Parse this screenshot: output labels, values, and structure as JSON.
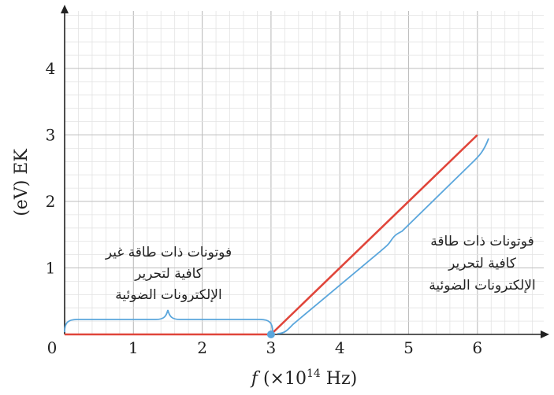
{
  "chart_data": {
    "type": "line",
    "xlabel_prefix": "f",
    "xlabel": "(×10",
    "xlabel_exp": "14",
    "xlabel_suffix": " Hz)",
    "ylabel": "(eV) EK",
    "xlim": [
      0,
      7.0
    ],
    "ylim": [
      0,
      5
    ],
    "x_ticks": [
      0,
      1,
      2,
      3,
      4,
      5,
      6
    ],
    "y_ticks": [
      1,
      2,
      3,
      4
    ],
    "grid": true,
    "series": [
      {
        "x": [
          0,
          3,
          6
        ],
        "y": [
          0,
          0,
          3
        ],
        "color": "#e0453a"
      }
    ],
    "threshold_point": {
      "x": 3,
      "y": 0,
      "color": "#5aa6dc"
    },
    "brace_color": "#5aa6dc",
    "annotations": {
      "left": [
        "فوتونات ذات طاقة غير",
        "كافية لتحرير",
        "الإلكترونات الضوئية"
      ],
      "right": [
        "فوتونات ذات طاقة",
        "كافية لتحرير",
        "الإلكترونات الضوئية"
      ]
    }
  }
}
